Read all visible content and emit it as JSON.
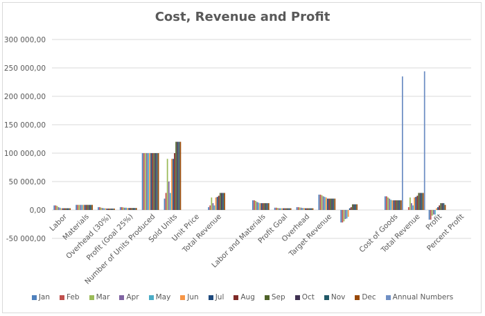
{
  "chart_data": {
    "type": "bar",
    "title": "Cost, Revenue and Profit",
    "xlabel": "",
    "ylabel": "",
    "ylim": [
      -50000,
      300000
    ],
    "yticks": [
      300000,
      250000,
      200000,
      150000,
      100000,
      50000,
      0,
      -50000
    ],
    "ytick_labels": [
      "300 000,00",
      "250 000,00",
      "200 000,00",
      "150 000,00",
      "100 000,00",
      "50 000,00",
      "0,00",
      "-50 000,00"
    ],
    "grid": true,
    "legend_position": "bottom",
    "categories": [
      "Labor",
      "Materials",
      "Overhead (30%)",
      "Profit (Goal 25%)",
      "Number of Units Produced",
      "Sold Units",
      "Unit Price",
      "Total Revenue",
      "",
      "Labor and Materials",
      "Profit Goal",
      "Overhead",
      "Target Revenue",
      "",
      "",
      "Cost of Goods",
      "Total Revenue",
      "Profit",
      "Percent Profit"
    ],
    "series": [
      {
        "name": "Jan",
        "color": "#4f81bd",
        "values": [
          8000,
          9000,
          5000,
          5000,
          100000,
          20000,
          0,
          5000,
          null,
          17000,
          4000,
          5000,
          27000,
          -22000,
          null,
          24000,
          0,
          -17000,
          0
        ]
      },
      {
        "name": "Feb",
        "color": "#c0504d",
        "values": [
          8000,
          9000,
          5000,
          5000,
          100000,
          30000,
          0,
          8000,
          null,
          17000,
          4000,
          5000,
          27000,
          -22000,
          null,
          24000,
          5000,
          -17000,
          0
        ]
      },
      {
        "name": "Mar",
        "color": "#9bbb59",
        "values": [
          7000,
          9000,
          4000,
          4500,
          100000,
          90000,
          0,
          22000,
          null,
          16000,
          3500,
          4500,
          26000,
          -20000,
          null,
          22000,
          22000,
          -10000,
          0
        ]
      },
      {
        "name": "Apr",
        "color": "#8064a2",
        "values": [
          5000,
          9000,
          3500,
          4000,
          100000,
          50000,
          0,
          12000,
          null,
          14000,
          3000,
          4000,
          24000,
          -16000,
          null,
          20000,
          12000,
          -8000,
          0
        ]
      },
      {
        "name": "May",
        "color": "#4bacc6",
        "values": [
          4000,
          9000,
          3000,
          4000,
          100000,
          30000,
          0,
          8000,
          null,
          13000,
          3000,
          3500,
          23000,
          -15000,
          null,
          18000,
          8000,
          -8000,
          0
        ]
      },
      {
        "name": "Jun",
        "color": "#f79646",
        "values": [
          3000,
          9000,
          3000,
          3500,
          100000,
          90000,
          0,
          22000,
          null,
          12000,
          3000,
          3500,
          22000,
          -12000,
          null,
          17000,
          22000,
          3000,
          0
        ]
      },
      {
        "name": "Jul",
        "color": "#1f497d",
        "values": [
          3000,
          9000,
          2500,
          3500,
          100000,
          90000,
          0,
          23000,
          null,
          12000,
          3000,
          3000,
          20000,
          3000,
          null,
          17000,
          23000,
          5000,
          0
        ]
      },
      {
        "name": "Aug",
        "color": "#7f2a27",
        "values": [
          3000,
          9000,
          2500,
          3500,
          100000,
          100000,
          0,
          25000,
          null,
          12000,
          3000,
          3000,
          20000,
          5000,
          null,
          17000,
          25000,
          8000,
          0
        ]
      },
      {
        "name": "Sep",
        "color": "#4f6228",
        "values": [
          3000,
          9000,
          2500,
          3500,
          100000,
          120000,
          0,
          30000,
          null,
          12000,
          3000,
          3000,
          20000,
          10000,
          null,
          17000,
          30000,
          12000,
          0
        ]
      },
      {
        "name": "Oct",
        "color": "#3f3151",
        "values": [
          3000,
          9000,
          2500,
          3500,
          100000,
          120000,
          0,
          30000,
          null,
          12000,
          3000,
          3000,
          20000,
          10000,
          null,
          17000,
          30000,
          12000,
          0
        ]
      },
      {
        "name": "Nov",
        "color": "#215967",
        "values": [
          3000,
          9000,
          2500,
          3500,
          100000,
          120000,
          0,
          30000,
          null,
          12000,
          3000,
          3000,
          20000,
          10000,
          null,
          17000,
          30000,
          12000,
          0
        ]
      },
      {
        "name": "Dec",
        "color": "#984807",
        "values": [
          3000,
          9000,
          2500,
          3500,
          100000,
          120000,
          0,
          30000,
          null,
          12000,
          3000,
          3000,
          20000,
          10000,
          null,
          17000,
          30000,
          9000,
          0
        ]
      },
      {
        "name": "Annual Numbers",
        "color": "#6f8fc4",
        "values": [
          0,
          0,
          0,
          0,
          0,
          0,
          0,
          0,
          null,
          0,
          0,
          0,
          0,
          0,
          null,
          235000,
          244000,
          0,
          0
        ]
      }
    ]
  }
}
